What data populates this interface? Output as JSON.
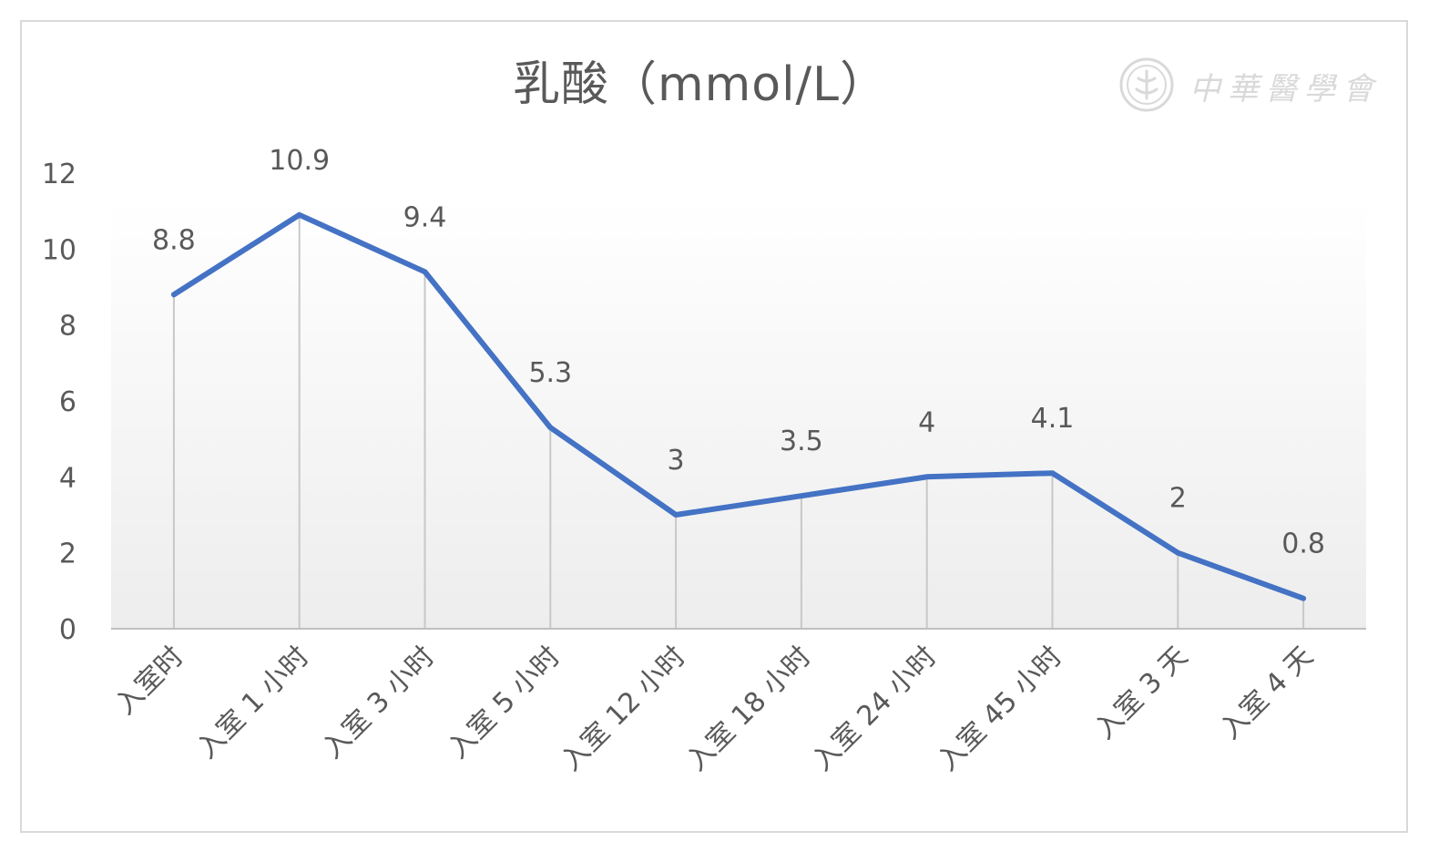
{
  "watermark": {
    "text": "中華醫學會",
    "icon": "society-seal-icon"
  },
  "chart_data": {
    "type": "line",
    "title": "乳酸（mmol/L）",
    "categories": [
      "入室时",
      "入室 1 小时",
      "入室 3 小时",
      "入室 5 小时",
      "入室 12 小时",
      "入室 18 小时",
      "入室 24 小时",
      "入室 45 小时",
      "入室 3 天",
      "入室 4 天"
    ],
    "series": [
      {
        "values": [
          8.8,
          10.9,
          9.4,
          5.3,
          3,
          3.5,
          4,
          4.1,
          2,
          0.8
        ],
        "color": "#4472c4"
      }
    ],
    "data_labels": [
      "8.8",
      "10.9",
      "9.4",
      "5.3",
      "3",
      "3.5",
      "4",
      "4.1",
      "2",
      "0.8"
    ],
    "ylim": [
      0,
      12
    ],
    "yticks": [
      "0",
      "2",
      "4",
      "6",
      "8",
      "10",
      "12"
    ],
    "drop_lines": true,
    "grid": false,
    "legend": "none"
  }
}
